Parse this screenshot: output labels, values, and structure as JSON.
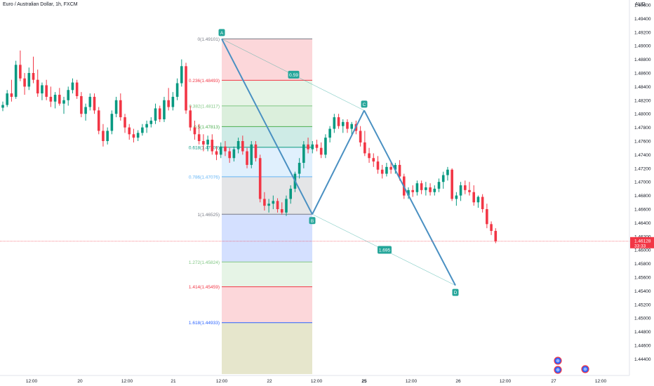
{
  "header": {
    "symbol_title": "Euro / Australian Dollar, 1h, FXCM",
    "currency": "AUD"
  },
  "price_axis": {
    "ticks": [
      "1.49600",
      "1.49400",
      "1.49200",
      "1.49000",
      "1.48800",
      "1.48600",
      "1.48400",
      "1.48200",
      "1.48000",
      "1.47800",
      "1.47600",
      "1.47400",
      "1.47200",
      "1.47000",
      "1.46800",
      "1.46600",
      "1.46400",
      "1.46200",
      "1.46000",
      "1.45800",
      "1.45600",
      "1.45400",
      "1.45200",
      "1.45000",
      "1.44800",
      "1.44600",
      "1.44400"
    ],
    "current_price": "1.46128",
    "countdown": "33:33"
  },
  "time_axis": {
    "labels": [
      "12:00",
      "20",
      "12:00",
      "21",
      "12:00",
      "22",
      "12:00",
      "25",
      "12:00",
      "26",
      "12:00",
      "27",
      "12:00"
    ],
    "bold_label": "25"
  },
  "fib_levels": [
    {
      "label": "0(1.49101)",
      "value": 1.49101,
      "color": "#787b86"
    },
    {
      "label": "0.236(1.48493)",
      "value": 1.48493,
      "color": "#f23645"
    },
    {
      "label": "0.382(1.48117)",
      "value": 1.48117,
      "color": "#81c784"
    },
    {
      "label": "0.5(1.47813)",
      "value": 1.47813,
      "color": "#4caf50"
    },
    {
      "label": "0.618(1.47509)",
      "value": 1.47509,
      "color": "#089981"
    },
    {
      "label": "0.786(1.47076)",
      "value": 1.47076,
      "color": "#64b5f6"
    },
    {
      "label": "1(1.46525)",
      "value": 1.46525,
      "color": "#787b86"
    },
    {
      "label": "1.272(1.45824)",
      "value": 1.45824,
      "color": "#81c784"
    },
    {
      "label": "1.414(1.45459)",
      "value": 1.45459,
      "color": "#f23645"
    },
    {
      "label": "1.618(1.44933)",
      "value": 1.44933,
      "color": "#2962ff"
    }
  ],
  "pattern": {
    "points": [
      {
        "label": "A",
        "price": 1.49101
      },
      {
        "label": "B",
        "price": 1.46525
      },
      {
        "label": "C",
        "price": 1.4805
      },
      {
        "label": "D",
        "price": 1.4548
      }
    ],
    "ratio_ac": "0.59",
    "ratio_bd": "1.695",
    "color": "#4a90c2"
  },
  "colors": {
    "up": "#089981",
    "down": "#f23645",
    "accent": "#26a69a"
  },
  "chart_data": {
    "type": "candlestick",
    "title": "Euro / Australian Dollar, 1h, FXCM",
    "ylabel": "AUD",
    "ylim": [
      1.4432,
      1.4972
    ],
    "candles": [
      {
        "o": 1.4809,
        "h": 1.4818,
        "l": 1.4804,
        "c": 1.4813
      },
      {
        "o": 1.4813,
        "h": 1.4835,
        "l": 1.481,
        "c": 1.483
      },
      {
        "o": 1.483,
        "h": 1.485,
        "l": 1.4818,
        "c": 1.4825
      },
      {
        "o": 1.4825,
        "h": 1.4878,
        "l": 1.4822,
        "c": 1.4872
      },
      {
        "o": 1.4872,
        "h": 1.4893,
        "l": 1.4848,
        "c": 1.4852
      },
      {
        "o": 1.4852,
        "h": 1.486,
        "l": 1.4828,
        "c": 1.484
      },
      {
        "o": 1.484,
        "h": 1.4868,
        "l": 1.4835,
        "c": 1.486
      },
      {
        "o": 1.486,
        "h": 1.4884,
        "l": 1.4845,
        "c": 1.485
      },
      {
        "o": 1.485,
        "h": 1.4865,
        "l": 1.4825,
        "c": 1.483
      },
      {
        "o": 1.483,
        "h": 1.4846,
        "l": 1.482,
        "c": 1.4842
      },
      {
        "o": 1.4842,
        "h": 1.485,
        "l": 1.482,
        "c": 1.4825
      },
      {
        "o": 1.4825,
        "h": 1.484,
        "l": 1.481,
        "c": 1.4818
      },
      {
        "o": 1.4818,
        "h": 1.4832,
        "l": 1.4808,
        "c": 1.4828
      },
      {
        "o": 1.4828,
        "h": 1.4838,
        "l": 1.4812,
        "c": 1.4815
      },
      {
        "o": 1.4815,
        "h": 1.4825,
        "l": 1.48,
        "c": 1.482
      },
      {
        "o": 1.482,
        "h": 1.484,
        "l": 1.4812,
        "c": 1.4835
      },
      {
        "o": 1.4835,
        "h": 1.4852,
        "l": 1.483,
        "c": 1.4846
      },
      {
        "o": 1.4846,
        "h": 1.485,
        "l": 1.4822,
        "c": 1.4826
      },
      {
        "o": 1.4826,
        "h": 1.4832,
        "l": 1.4795,
        "c": 1.48
      },
      {
        "o": 1.48,
        "h": 1.4815,
        "l": 1.479,
        "c": 1.481
      },
      {
        "o": 1.481,
        "h": 1.483,
        "l": 1.4805,
        "c": 1.4825
      },
      {
        "o": 1.4825,
        "h": 1.483,
        "l": 1.48,
        "c": 1.4805
      },
      {
        "o": 1.4805,
        "h": 1.481,
        "l": 1.477,
        "c": 1.4775
      },
      {
        "o": 1.4775,
        "h": 1.4785,
        "l": 1.4752,
        "c": 1.476
      },
      {
        "o": 1.476,
        "h": 1.478,
        "l": 1.4755,
        "c": 1.4775
      },
      {
        "o": 1.4775,
        "h": 1.4805,
        "l": 1.477,
        "c": 1.48
      },
      {
        "o": 1.48,
        "h": 1.4825,
        "l": 1.4795,
        "c": 1.482
      },
      {
        "o": 1.482,
        "h": 1.483,
        "l": 1.479,
        "c": 1.4795
      },
      {
        "o": 1.4795,
        "h": 1.48,
        "l": 1.4772,
        "c": 1.478
      },
      {
        "o": 1.478,
        "h": 1.4785,
        "l": 1.4762,
        "c": 1.477
      },
      {
        "o": 1.477,
        "h": 1.4778,
        "l": 1.4758,
        "c": 1.4765
      },
      {
        "o": 1.4765,
        "h": 1.4776,
        "l": 1.476,
        "c": 1.4772
      },
      {
        "o": 1.4772,
        "h": 1.4785,
        "l": 1.4768,
        "c": 1.478
      },
      {
        "o": 1.478,
        "h": 1.479,
        "l": 1.4772,
        "c": 1.4785
      },
      {
        "o": 1.4785,
        "h": 1.4795,
        "l": 1.478,
        "c": 1.479
      },
      {
        "o": 1.479,
        "h": 1.4815,
        "l": 1.4785,
        "c": 1.4808
      },
      {
        "o": 1.4808,
        "h": 1.4812,
        "l": 1.4788,
        "c": 1.4792
      },
      {
        "o": 1.4792,
        "h": 1.4825,
        "l": 1.4788,
        "c": 1.482
      },
      {
        "o": 1.482,
        "h": 1.4838,
        "l": 1.4805,
        "c": 1.481
      },
      {
        "o": 1.481,
        "h": 1.4832,
        "l": 1.4805,
        "c": 1.4825
      },
      {
        "o": 1.4825,
        "h": 1.4852,
        "l": 1.482,
        "c": 1.4845
      },
      {
        "o": 1.4845,
        "h": 1.488,
        "l": 1.484,
        "c": 1.487
      },
      {
        "o": 1.487,
        "h": 1.4875,
        "l": 1.48,
        "c": 1.4805
      },
      {
        "o": 1.4805,
        "h": 1.4812,
        "l": 1.4775,
        "c": 1.478
      },
      {
        "o": 1.478,
        "h": 1.479,
        "l": 1.4762,
        "c": 1.477
      },
      {
        "o": 1.477,
        "h": 1.4785,
        "l": 1.4755,
        "c": 1.476
      },
      {
        "o": 1.476,
        "h": 1.477,
        "l": 1.4745,
        "c": 1.4755
      },
      {
        "o": 1.4755,
        "h": 1.4768,
        "l": 1.4745,
        "c": 1.4762
      },
      {
        "o": 1.4762,
        "h": 1.477,
        "l": 1.474,
        "c": 1.4745
      },
      {
        "o": 1.4745,
        "h": 1.4752,
        "l": 1.4732,
        "c": 1.474
      },
      {
        "o": 1.474,
        "h": 1.4758,
        "l": 1.4735,
        "c": 1.4752
      },
      {
        "o": 1.4752,
        "h": 1.476,
        "l": 1.4738,
        "c": 1.4745
      },
      {
        "o": 1.4745,
        "h": 1.475,
        "l": 1.4728,
        "c": 1.4735
      },
      {
        "o": 1.4735,
        "h": 1.4752,
        "l": 1.473,
        "c": 1.4748
      },
      {
        "o": 1.4748,
        "h": 1.4765,
        "l": 1.4742,
        "c": 1.476
      },
      {
        "o": 1.476,
        "h": 1.4768,
        "l": 1.474,
        "c": 1.4745
      },
      {
        "o": 1.4745,
        "h": 1.475,
        "l": 1.472,
        "c": 1.4725
      },
      {
        "o": 1.4725,
        "h": 1.476,
        "l": 1.472,
        "c": 1.4755
      },
      {
        "o": 1.4755,
        "h": 1.476,
        "l": 1.473,
        "c": 1.4735
      },
      {
        "o": 1.4735,
        "h": 1.474,
        "l": 1.467,
        "c": 1.4675
      },
      {
        "o": 1.4675,
        "h": 1.4685,
        "l": 1.4658,
        "c": 1.4665
      },
      {
        "o": 1.4665,
        "h": 1.4675,
        "l": 1.4655,
        "c": 1.4668
      },
      {
        "o": 1.4668,
        "h": 1.468,
        "l": 1.466,
        "c": 1.4672
      },
      {
        "o": 1.4672,
        "h": 1.4676,
        "l": 1.4655,
        "c": 1.466
      },
      {
        "o": 1.466,
        "h": 1.467,
        "l": 1.4652,
        "c": 1.4655
      },
      {
        "o": 1.4655,
        "h": 1.468,
        "l": 1.465,
        "c": 1.4675
      },
      {
        "o": 1.4675,
        "h": 1.4695,
        "l": 1.4668,
        "c": 1.469
      },
      {
        "o": 1.469,
        "h": 1.4715,
        "l": 1.4685,
        "c": 1.4712
      },
      {
        "o": 1.4712,
        "h": 1.4735,
        "l": 1.4705,
        "c": 1.4728
      },
      {
        "o": 1.4728,
        "h": 1.476,
        "l": 1.472,
        "c": 1.4755
      },
      {
        "o": 1.4755,
        "h": 1.4765,
        "l": 1.4742,
        "c": 1.4748
      },
      {
        "o": 1.4748,
        "h": 1.476,
        "l": 1.4742,
        "c": 1.4755
      },
      {
        "o": 1.4755,
        "h": 1.4762,
        "l": 1.4745,
        "c": 1.475
      },
      {
        "o": 1.475,
        "h": 1.4758,
        "l": 1.4735,
        "c": 1.474
      },
      {
        "o": 1.474,
        "h": 1.477,
        "l": 1.4735,
        "c": 1.4765
      },
      {
        "o": 1.4765,
        "h": 1.4782,
        "l": 1.4758,
        "c": 1.4778
      },
      {
        "o": 1.4778,
        "h": 1.48,
        "l": 1.4772,
        "c": 1.4795
      },
      {
        "o": 1.4795,
        "h": 1.48,
        "l": 1.4778,
        "c": 1.4782
      },
      {
        "o": 1.4782,
        "h": 1.4792,
        "l": 1.4772,
        "c": 1.4788
      },
      {
        "o": 1.4788,
        "h": 1.4792,
        "l": 1.4772,
        "c": 1.4778
      },
      {
        "o": 1.4778,
        "h": 1.4788,
        "l": 1.4768,
        "c": 1.4785
      },
      {
        "o": 1.4785,
        "h": 1.479,
        "l": 1.477,
        "c": 1.4775
      },
      {
        "o": 1.4775,
        "h": 1.4782,
        "l": 1.4752,
        "c": 1.4758
      },
      {
        "o": 1.4758,
        "h": 1.4775,
        "l": 1.4738,
        "c": 1.4742
      },
      {
        "o": 1.4742,
        "h": 1.475,
        "l": 1.4728,
        "c": 1.4735
      },
      {
        "o": 1.4735,
        "h": 1.4742,
        "l": 1.4722,
        "c": 1.473
      },
      {
        "o": 1.473,
        "h": 1.4738,
        "l": 1.4712,
        "c": 1.4718
      },
      {
        "o": 1.4718,
        "h": 1.4725,
        "l": 1.4705,
        "c": 1.4712
      },
      {
        "o": 1.4712,
        "h": 1.4728,
        "l": 1.4708,
        "c": 1.4722
      },
      {
        "o": 1.4722,
        "h": 1.473,
        "l": 1.4712,
        "c": 1.4718
      },
      {
        "o": 1.4718,
        "h": 1.4728,
        "l": 1.4712,
        "c": 1.4725
      },
      {
        "o": 1.4725,
        "h": 1.4732,
        "l": 1.4702,
        "c": 1.4708
      },
      {
        "o": 1.4708,
        "h": 1.4712,
        "l": 1.4675,
        "c": 1.468
      },
      {
        "o": 1.468,
        "h": 1.4692,
        "l": 1.4675,
        "c": 1.4688
      },
      {
        "o": 1.4688,
        "h": 1.4695,
        "l": 1.4678,
        "c": 1.4685
      },
      {
        "o": 1.4685,
        "h": 1.4702,
        "l": 1.468,
        "c": 1.4698
      },
      {
        "o": 1.4698,
        "h": 1.4702,
        "l": 1.4682,
        "c": 1.4688
      },
      {
        "o": 1.4688,
        "h": 1.47,
        "l": 1.468,
        "c": 1.4692
      },
      {
        "o": 1.4692,
        "h": 1.4698,
        "l": 1.468,
        "c": 1.4685
      },
      {
        "o": 1.4685,
        "h": 1.4695,
        "l": 1.468,
        "c": 1.469
      },
      {
        "o": 1.469,
        "h": 1.4705,
        "l": 1.4685,
        "c": 1.47
      },
      {
        "o": 1.47,
        "h": 1.4715,
        "l": 1.469,
        "c": 1.471
      },
      {
        "o": 1.471,
        "h": 1.4722,
        "l": 1.4702,
        "c": 1.4718
      },
      {
        "o": 1.4718,
        "h": 1.472,
        "l": 1.4672,
        "c": 1.4675
      },
      {
        "o": 1.4675,
        "h": 1.4685,
        "l": 1.4665,
        "c": 1.468
      },
      {
        "o": 1.468,
        "h": 1.47,
        "l": 1.4672,
        "c": 1.4695
      },
      {
        "o": 1.4695,
        "h": 1.4702,
        "l": 1.4682,
        "c": 1.4688
      },
      {
        "o": 1.4688,
        "h": 1.47,
        "l": 1.468,
        "c": 1.4685
      },
      {
        "o": 1.4685,
        "h": 1.4695,
        "l": 1.4665,
        "c": 1.467
      },
      {
        "o": 1.467,
        "h": 1.468,
        "l": 1.4662,
        "c": 1.4678
      },
      {
        "o": 1.4678,
        "h": 1.4682,
        "l": 1.4655,
        "c": 1.466
      },
      {
        "o": 1.466,
        "h": 1.4668,
        "l": 1.4632,
        "c": 1.4638
      },
      {
        "o": 1.4638,
        "h": 1.4642,
        "l": 1.4622,
        "c": 1.4628
      },
      {
        "o": 1.4628,
        "h": 1.4632,
        "l": 1.461,
        "c": 1.46128
      }
    ]
  }
}
